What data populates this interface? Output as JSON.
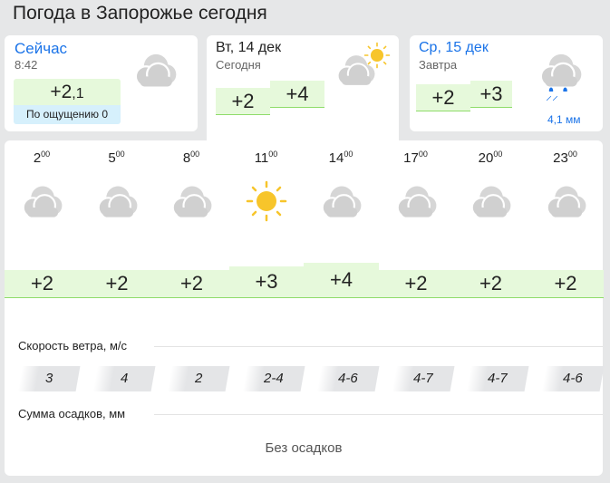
{
  "title": "Погода в Запорожье сегодня",
  "now": {
    "label": "Сейчас",
    "time": "8:42",
    "temp_int": "+2",
    "temp_frac": ",1",
    "feels": "По ощущению 0",
    "icon": "cloudy-icon"
  },
  "today": {
    "date": "Вт, 14 дек",
    "sub": "Сегодня",
    "min": "+2",
    "max": "+4",
    "icon": "partly-cloudy-icon"
  },
  "tomorrow": {
    "date": "Ср, 15 дек",
    "sub": "Завтра",
    "min": "+2",
    "max": "+3",
    "precip": "4,1 мм",
    "icon": "rain-icon"
  },
  "hours": [
    {
      "h": "2",
      "m": "00",
      "t": "+2",
      "wind": "3",
      "icon": "cloudy-icon"
    },
    {
      "h": "5",
      "m": "00",
      "t": "+2",
      "wind": "4",
      "icon": "cloudy-icon"
    },
    {
      "h": "8",
      "m": "00",
      "t": "+2",
      "wind": "2",
      "icon": "cloudy-icon"
    },
    {
      "h": "11",
      "m": "00",
      "t": "+3",
      "wind": "2-4",
      "icon": "sun-icon"
    },
    {
      "h": "14",
      "m": "00",
      "t": "+4",
      "wind": "4-6",
      "icon": "cloudy-icon"
    },
    {
      "h": "17",
      "m": "00",
      "t": "+2",
      "wind": "4-7",
      "icon": "cloudy-icon"
    },
    {
      "h": "20",
      "m": "00",
      "t": "+2",
      "wind": "4-7",
      "icon": "cloudy-icon"
    },
    {
      "h": "23",
      "m": "00",
      "t": "+2",
      "wind": "4-6",
      "icon": "cloudy-icon"
    }
  ],
  "wind_label": "Скорость ветра, м/с",
  "precip_label": "Сумма осадков, мм",
  "precip_value": "Без осадков",
  "colors": {
    "accent": "#1a73e8",
    "temp_bg": "#e6f9db",
    "temp_line": "#8fdc6a",
    "cloud": "#cccccc",
    "sun": "#f7c52b"
  }
}
